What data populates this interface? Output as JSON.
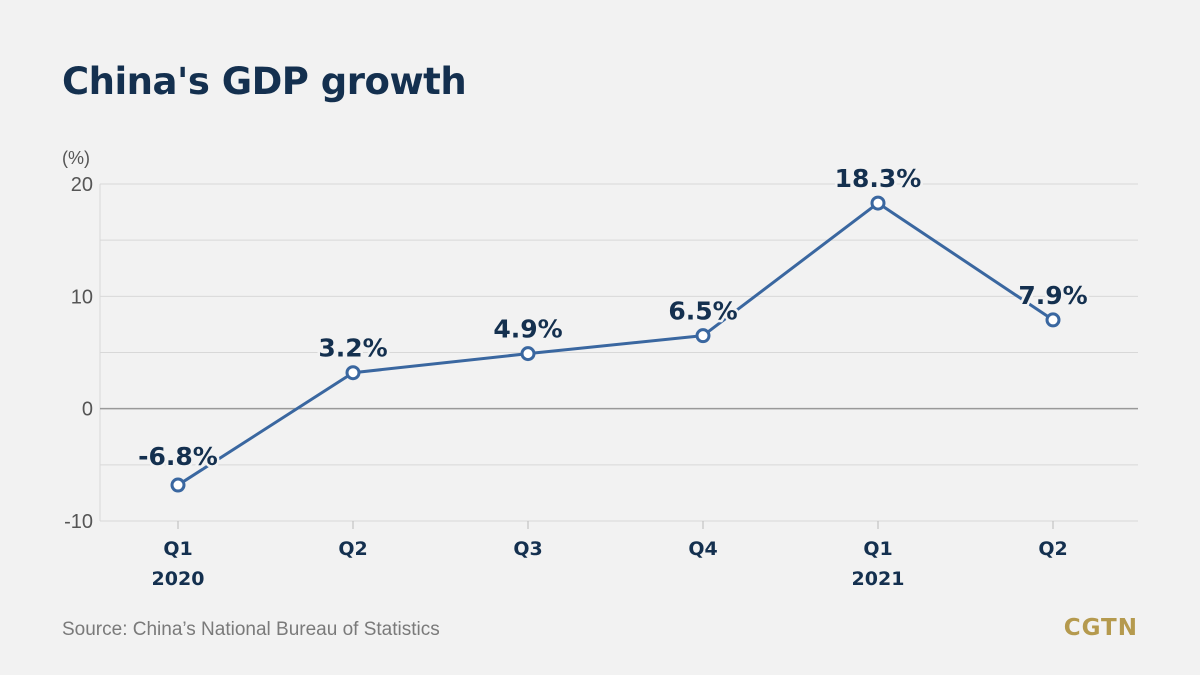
{
  "title": "China's GDP growth",
  "source": "Source: China’s National Bureau of Statistics",
  "logo": "CGTN",
  "colors": {
    "line": "#3a67a0",
    "marker_fill": "#ffffff",
    "text_dark": "#14304f",
    "axis_text": "#555555",
    "grid": "#d8d8d8",
    "zero_line": "#999999",
    "logo": "#b59a4e"
  },
  "chart_data": {
    "type": "line",
    "unit_label": "(%)",
    "categories": [
      "Q1",
      "Q2",
      "Q3",
      "Q4",
      "Q1",
      "Q2"
    ],
    "category_years": [
      "2020",
      "",
      "",
      "",
      "2021",
      ""
    ],
    "values": [
      -6.8,
      3.2,
      4.9,
      6.5,
      18.3,
      7.9
    ],
    "data_labels": [
      "-6.8%",
      "3.2%",
      "4.9%",
      "6.5%",
      "18.3%",
      "7.9%"
    ],
    "ylim": [
      -10,
      20
    ],
    "yticks": [
      20,
      10,
      0,
      -10
    ],
    "grid": true,
    "xlabel": "",
    "ylabel": ""
  }
}
